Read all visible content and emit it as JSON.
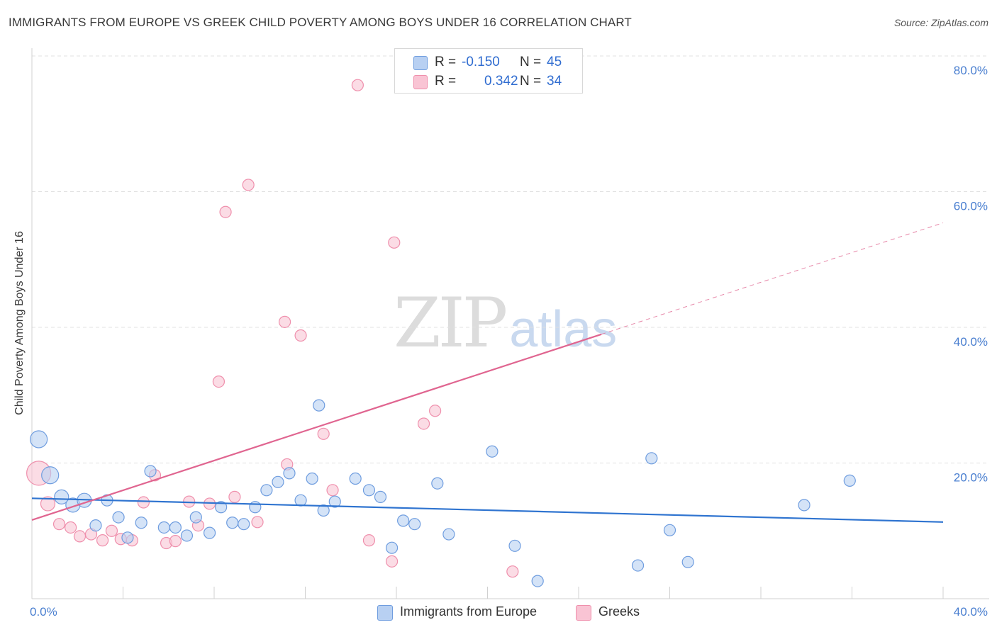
{
  "header": {
    "title": "IMMIGRANTS FROM EUROPE VS GREEK CHILD POVERTY AMONG BOYS UNDER 16 CORRELATION CHART",
    "source": "Source: ZipAtlas.com"
  },
  "watermark": {
    "zip": "ZIP",
    "atlas": "atlas"
  },
  "legend": {
    "rows": [
      {
        "r_label": "R =",
        "r_value": "-0.150",
        "n_label": "N =",
        "n_value": "45",
        "color": "#b8d0f2"
      },
      {
        "r_label": "R =",
        "r_value": "0.342",
        "n_label": "N =",
        "n_value": "34",
        "color": "#f9c4d4"
      }
    ]
  },
  "bottom_legend": {
    "items": [
      {
        "label": "Immigrants from Europe",
        "color": "#b8d0f2"
      },
      {
        "label": "Greeks",
        "color": "#f9c4d4"
      }
    ]
  },
  "chart_data": {
    "type": "scatter",
    "title": "IMMIGRANTS FROM EUROPE VS GREEK CHILD POVERTY AMONG BOYS UNDER 16 CORRELATION CHART",
    "xlabel": "",
    "ylabel": "Child Poverty Among Boys Under 16",
    "xlim": [
      0,
      40
    ],
    "ylim": [
      0,
      80
    ],
    "x_tick_labels": [
      "0.0%",
      "40.0%"
    ],
    "y_ticks": [
      20,
      40,
      60,
      80
    ],
    "y_tick_labels": [
      "20.0%",
      "40.0%",
      "60.0%",
      "80.0%"
    ],
    "grid": true,
    "series": [
      {
        "name": "Immigrants from Europe",
        "color": "#b8d0f2",
        "stroke": "#6f9ddf",
        "points": [
          {
            "x": 0.3,
            "y": 23.5,
            "s": "lg"
          },
          {
            "x": 0.8,
            "y": 18.2,
            "s": "lg"
          },
          {
            "x": 1.3,
            "y": 15.0,
            "s": "md"
          },
          {
            "x": 1.8,
            "y": 13.8,
            "s": "md"
          },
          {
            "x": 2.3,
            "y": 14.5,
            "s": "md"
          },
          {
            "x": 2.8,
            "y": 10.8
          },
          {
            "x": 3.3,
            "y": 14.5
          },
          {
            "x": 3.8,
            "y": 12.0
          },
          {
            "x": 4.2,
            "y": 9.0
          },
          {
            "x": 4.8,
            "y": 11.2
          },
          {
            "x": 5.2,
            "y": 18.8
          },
          {
            "x": 5.8,
            "y": 10.5
          },
          {
            "x": 6.3,
            "y": 10.5
          },
          {
            "x": 6.8,
            "y": 9.3
          },
          {
            "x": 7.2,
            "y": 12.0
          },
          {
            "x": 7.8,
            "y": 9.7
          },
          {
            "x": 8.3,
            "y": 13.5
          },
          {
            "x": 8.8,
            "y": 11.2
          },
          {
            "x": 9.3,
            "y": 11.0
          },
          {
            "x": 9.8,
            "y": 13.5
          },
          {
            "x": 10.3,
            "y": 16.0
          },
          {
            "x": 10.8,
            "y": 17.2
          },
          {
            "x": 11.3,
            "y": 18.5
          },
          {
            "x": 11.8,
            "y": 14.5
          },
          {
            "x": 12.3,
            "y": 17.7
          },
          {
            "x": 12.8,
            "y": 13.0
          },
          {
            "x": 12.6,
            "y": 28.5
          },
          {
            "x": 13.3,
            "y": 14.3
          },
          {
            "x": 14.2,
            "y": 17.7
          },
          {
            "x": 14.8,
            "y": 16.0
          },
          {
            "x": 15.3,
            "y": 15.0
          },
          {
            "x": 15.8,
            "y": 7.5
          },
          {
            "x": 16.3,
            "y": 11.5
          },
          {
            "x": 16.8,
            "y": 11.0
          },
          {
            "x": 17.8,
            "y": 17.0
          },
          {
            "x": 18.3,
            "y": 9.5
          },
          {
            "x": 20.2,
            "y": 21.7
          },
          {
            "x": 21.2,
            "y": 7.8
          },
          {
            "x": 22.2,
            "y": 2.6
          },
          {
            "x": 26.6,
            "y": 4.9
          },
          {
            "x": 27.2,
            "y": 20.7
          },
          {
            "x": 28.0,
            "y": 10.1
          },
          {
            "x": 28.8,
            "y": 5.4
          },
          {
            "x": 33.9,
            "y": 13.8
          },
          {
            "x": 35.9,
            "y": 17.4
          }
        ],
        "trend": {
          "x0": 0,
          "y0": 14.8,
          "x1": 40,
          "y1": 11.3,
          "dashed_from": null
        }
      },
      {
        "name": "Greeks",
        "color": "#f9c4d4",
        "stroke": "#ef8fac",
        "points": [
          {
            "x": 0.3,
            "y": 18.5,
            "s": "xl"
          },
          {
            "x": 0.7,
            "y": 14.0,
            "s": "md"
          },
          {
            "x": 1.2,
            "y": 11.0
          },
          {
            "x": 1.7,
            "y": 10.5
          },
          {
            "x": 2.1,
            "y": 9.2
          },
          {
            "x": 2.6,
            "y": 9.5
          },
          {
            "x": 3.1,
            "y": 8.6
          },
          {
            "x": 3.5,
            "y": 10.0
          },
          {
            "x": 3.9,
            "y": 8.8
          },
          {
            "x": 4.4,
            "y": 8.6
          },
          {
            "x": 4.9,
            "y": 14.2
          },
          {
            "x": 5.4,
            "y": 18.2
          },
          {
            "x": 5.9,
            "y": 8.2
          },
          {
            "x": 6.3,
            "y": 8.5
          },
          {
            "x": 6.9,
            "y": 14.3
          },
          {
            "x": 7.3,
            "y": 10.8
          },
          {
            "x": 7.8,
            "y": 14.0
          },
          {
            "x": 8.5,
            "y": 57.0
          },
          {
            "x": 8.2,
            "y": 32.0
          },
          {
            "x": 8.9,
            "y": 15.0
          },
          {
            "x": 9.5,
            "y": 61.0
          },
          {
            "x": 9.9,
            "y": 11.3
          },
          {
            "x": 11.1,
            "y": 40.8
          },
          {
            "x": 11.2,
            "y": 19.8
          },
          {
            "x": 11.8,
            "y": 38.8
          },
          {
            "x": 12.8,
            "y": 24.3
          },
          {
            "x": 13.2,
            "y": 16.0
          },
          {
            "x": 14.3,
            "y": 75.7
          },
          {
            "x": 14.8,
            "y": 8.6
          },
          {
            "x": 15.8,
            "y": 5.5
          },
          {
            "x": 15.9,
            "y": 52.5
          },
          {
            "x": 17.2,
            "y": 25.8
          },
          {
            "x": 17.7,
            "y": 27.7
          },
          {
            "x": 21.1,
            "y": 4.0
          }
        ],
        "trend": {
          "x0": 0,
          "y0": 11.6,
          "x1": 40,
          "y1": 55.4,
          "dashed_from": 25
        }
      }
    ]
  }
}
